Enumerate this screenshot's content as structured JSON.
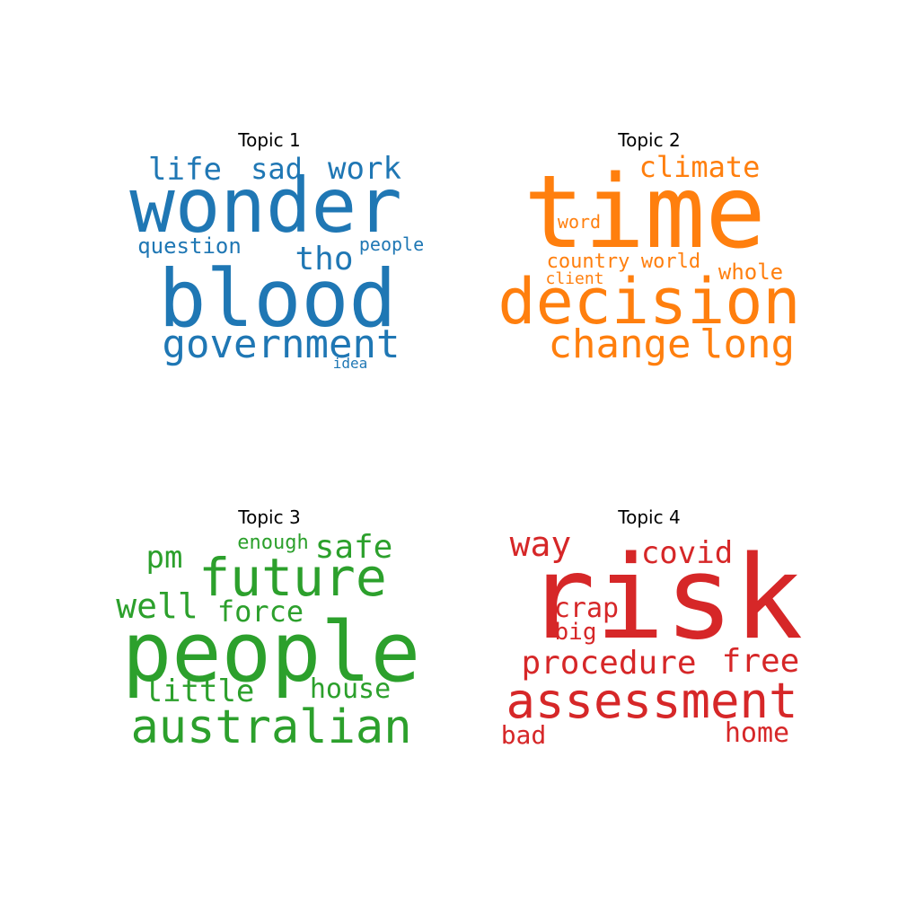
{
  "chart_data": [
    {
      "type": "wordcloud",
      "title": "Topic 1",
      "color": "#1f77b4",
      "words": [
        {
          "text": "wonder"
        },
        {
          "text": "blood"
        },
        {
          "text": "government"
        },
        {
          "text": "life"
        },
        {
          "text": "sad"
        },
        {
          "text": "work"
        },
        {
          "text": "tho"
        },
        {
          "text": "question"
        },
        {
          "text": "people"
        },
        {
          "text": "idea"
        }
      ]
    },
    {
      "type": "wordcloud",
      "title": "Topic 2",
      "color": "#ff7f0e",
      "words": [
        {
          "text": "time"
        },
        {
          "text": "decision"
        },
        {
          "text": "change"
        },
        {
          "text": "long"
        },
        {
          "text": "climate"
        },
        {
          "text": "word"
        },
        {
          "text": "country"
        },
        {
          "text": "world"
        },
        {
          "text": "whole"
        },
        {
          "text": "client"
        }
      ]
    },
    {
      "type": "wordcloud",
      "title": "Topic 3",
      "color": "#2ca02c",
      "words": [
        {
          "text": "people"
        },
        {
          "text": "future"
        },
        {
          "text": "australian"
        },
        {
          "text": "safe"
        },
        {
          "text": "pm"
        },
        {
          "text": "enough"
        },
        {
          "text": "well"
        },
        {
          "text": "force"
        },
        {
          "text": "little"
        },
        {
          "text": "house"
        }
      ]
    },
    {
      "type": "wordcloud",
      "title": "Topic 4",
      "color": "#d62728",
      "words": [
        {
          "text": "risk"
        },
        {
          "text": "assessment"
        },
        {
          "text": "way"
        },
        {
          "text": "covid"
        },
        {
          "text": "crap"
        },
        {
          "text": "big"
        },
        {
          "text": "procedure"
        },
        {
          "text": "free"
        },
        {
          "text": "bad"
        },
        {
          "text": "home"
        }
      ]
    }
  ]
}
